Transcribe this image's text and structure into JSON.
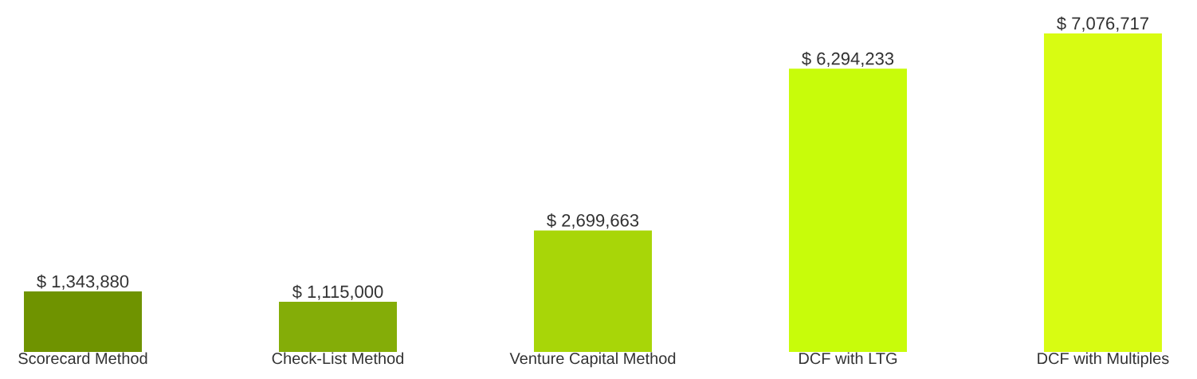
{
  "chart_data": {
    "type": "bar",
    "categories": [
      "Scorecard Method",
      "Check-List Method",
      "Venture Capital Method",
      "DCF with LTG",
      "DCF with Multiples"
    ],
    "values": [
      1343880,
      1115000,
      2699663,
      6294233,
      7076717
    ],
    "colors": [
      "#6f9300",
      "#84ad08",
      "#a8d608",
      "#c8fc0a",
      "#d8fc12"
    ],
    "value_labels": [
      "$ 1,343,880",
      "$ 1,115,000",
      "$ 2,699,663",
      "$ 6,294,233",
      "$ 7,076,717"
    ]
  }
}
